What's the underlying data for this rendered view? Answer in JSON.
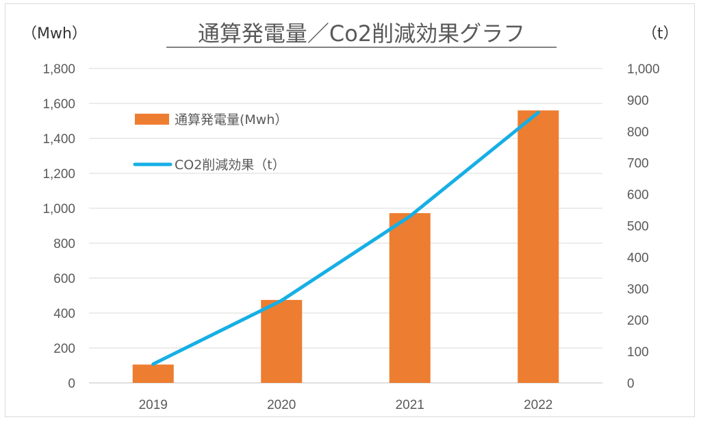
{
  "chart_data": {
    "type": "bar+line",
    "title": "通算発電量／Co2削減効果グラフ",
    "left_unit_label": "（Mwh）",
    "right_unit_label": "（t）",
    "categories": [
      "2019",
      "2020",
      "2021",
      "2022"
    ],
    "series": [
      {
        "name": "通算発電量(Mwh）",
        "type": "bar",
        "axis": "left",
        "values": [
          105,
          475,
          972,
          1560
        ]
      },
      {
        "name": "CO2削減効果（t）",
        "type": "line",
        "axis": "right",
        "values": [
          60,
          262,
          530,
          860
        ]
      }
    ],
    "y_left": {
      "min": 0,
      "max": 1800,
      "ticks": [
        "0",
        "200",
        "400",
        "600",
        "800",
        "1,000",
        "1,200",
        "1,400",
        "1,600",
        "1,800"
      ]
    },
    "y_right": {
      "min": 0,
      "max": 1000,
      "ticks": [
        "0",
        "100",
        "200",
        "300",
        "400",
        "500",
        "600",
        "700",
        "800",
        "900",
        "1,000"
      ]
    },
    "grid": true,
    "legend": "upper-left inside plot",
    "colors": {
      "bar": "#ED7D31",
      "line": "#16AFE5",
      "grid": "#d9d9d9",
      "text": "#595959"
    }
  }
}
